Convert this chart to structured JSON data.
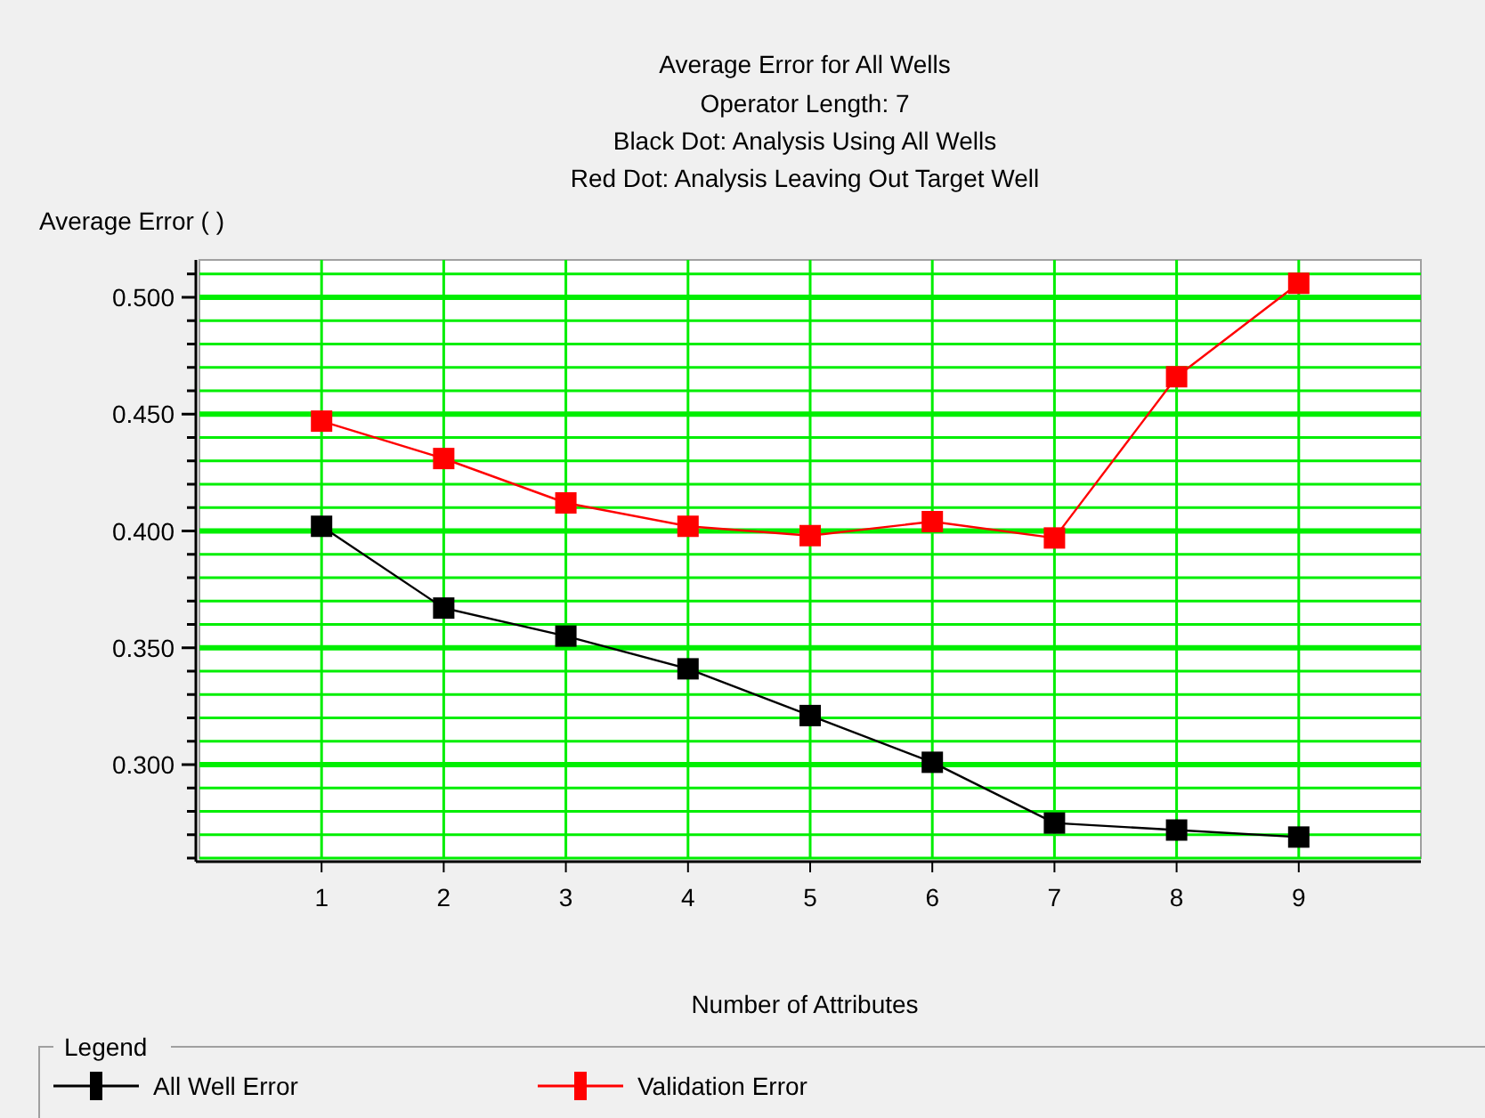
{
  "chart_data": {
    "type": "line",
    "title": "Average Error for All Wells",
    "subtitle": "Operator Length: 7\nBlack Dot: Analysis Using All Wells\nRed Dot: Analysis Leaving Out Target Well",
    "xlabel": "Number of Attributes",
    "ylabel": "Average Error ( )",
    "legend_title": "Legend",
    "x": [
      1,
      2,
      3,
      4,
      5,
      6,
      7,
      8,
      9
    ],
    "xlim": [
      0,
      10
    ],
    "xticks": [
      1,
      2,
      3,
      4,
      5,
      6,
      7,
      8,
      9
    ],
    "ylim": [
      0.26,
      0.516
    ],
    "yticks": [
      {
        "value": 0.26,
        "label": null
      },
      {
        "value": 0.27,
        "label": null
      },
      {
        "value": 0.28,
        "label": null
      },
      {
        "value": 0.29,
        "label": null
      },
      {
        "value": 0.3,
        "label": "0.300"
      },
      {
        "value": 0.31,
        "label": null
      },
      {
        "value": 0.32,
        "label": null
      },
      {
        "value": 0.33,
        "label": null
      },
      {
        "value": 0.34,
        "label": null
      },
      {
        "value": 0.35,
        "label": "0.350"
      },
      {
        "value": 0.36,
        "label": null
      },
      {
        "value": 0.37,
        "label": null
      },
      {
        "value": 0.38,
        "label": null
      },
      {
        "value": 0.39,
        "label": null
      },
      {
        "value": 0.4,
        "label": "0.400"
      },
      {
        "value": 0.41,
        "label": null
      },
      {
        "value": 0.42,
        "label": null
      },
      {
        "value": 0.43,
        "label": null
      },
      {
        "value": 0.44,
        "label": null
      },
      {
        "value": 0.45,
        "label": "0.450"
      },
      {
        "value": 0.46,
        "label": null
      },
      {
        "value": 0.47,
        "label": null
      },
      {
        "value": 0.48,
        "label": null
      },
      {
        "value": 0.49,
        "label": null
      },
      {
        "value": 0.5,
        "label": "0.500"
      },
      {
        "value": 0.51,
        "label": null
      }
    ],
    "grid": true,
    "legend": "bottom",
    "marker": "square",
    "line_style": "solid",
    "series": [
      {
        "name": "All Well Error",
        "color": "#000000",
        "values": [
          0.402,
          0.367,
          0.355,
          0.341,
          0.321,
          0.301,
          0.275,
          0.272,
          0.269
        ]
      },
      {
        "name": "Validation Error",
        "color": "#ff0000",
        "values": [
          0.447,
          0.431,
          0.412,
          0.402,
          0.398,
          0.404,
          0.397,
          0.466,
          0.506
        ]
      }
    ]
  }
}
